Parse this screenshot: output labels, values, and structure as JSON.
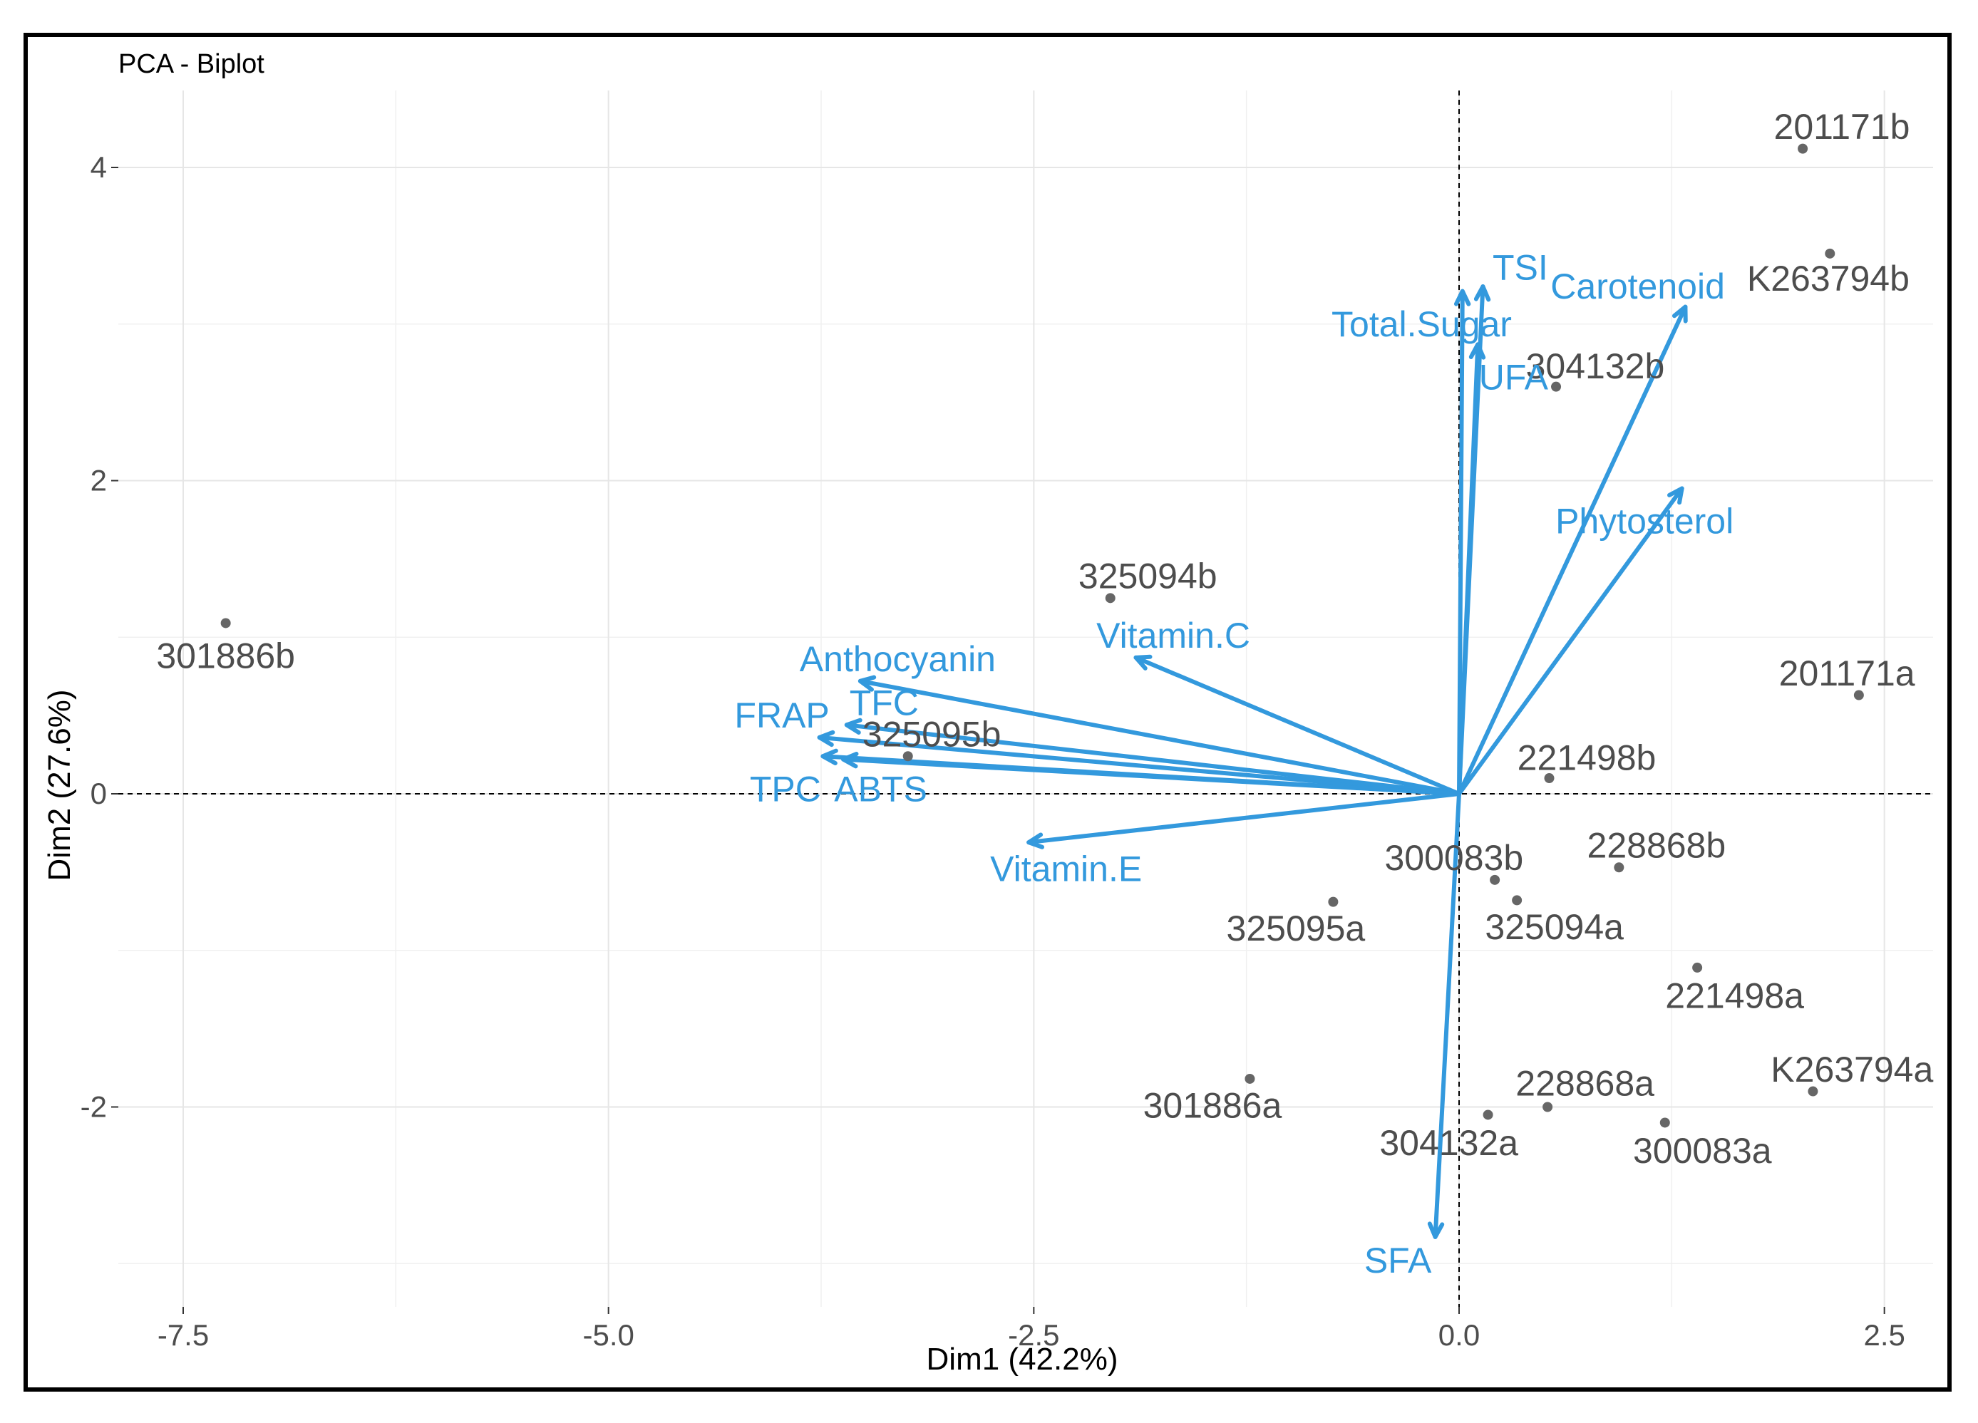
{
  "chart_data": {
    "type": "scatter",
    "title": "PCA - Biplot",
    "xlabel": "Dim1 (42.2%)",
    "ylabel": "Dim2 (27.6%)",
    "xlim": [
      -7.6,
      2.8
    ],
    "ylim": [
      -3.0,
      4.45
    ],
    "x_ticks": [
      {
        "value": -7.5,
        "label": "-7.5"
      },
      {
        "value": -5.0,
        "label": "-5.0"
      },
      {
        "value": -2.5,
        "label": "-2.5"
      },
      {
        "value": 0.0,
        "label": "0.0"
      },
      {
        "value": 2.5,
        "label": "2.5"
      }
    ],
    "y_ticks": [
      {
        "value": -2,
        "label": "-2"
      },
      {
        "value": 0,
        "label": "0"
      },
      {
        "value": 2,
        "label": "2"
      },
      {
        "value": 4,
        "label": "4"
      }
    ],
    "grid": true,
    "point_color": "#666666",
    "arrow_color": "#3399dd",
    "individuals": [
      {
        "label": "201171b",
        "x": 2.02,
        "y": 4.12,
        "lx": 2.25,
        "ly": 4.26
      },
      {
        "label": "K263794b",
        "x": 2.18,
        "y": 3.45,
        "lx": 2.17,
        "ly": 3.29
      },
      {
        "label": "304132b",
        "x": 0.57,
        "y": 2.6,
        "lx": 0.8,
        "ly": 2.73
      },
      {
        "label": "325094b",
        "x": -2.05,
        "y": 1.25,
        "lx": -1.83,
        "ly": 1.39
      },
      {
        "label": "301886b",
        "x": -7.25,
        "y": 1.09,
        "lx": -7.25,
        "ly": 0.88
      },
      {
        "label": "201171a",
        "x": 2.35,
        "y": 0.63,
        "lx": 2.28,
        "ly": 0.77
      },
      {
        "label": "325095b",
        "x": -3.24,
        "y": 0.24,
        "lx": -3.1,
        "ly": 0.38
      },
      {
        "label": "221498b",
        "x": 0.53,
        "y": 0.1,
        "lx": 0.75,
        "ly": 0.23
      },
      {
        "label": "300083b",
        "x": 0.21,
        "y": -0.55,
        "lx": -0.03,
        "ly": -0.41
      },
      {
        "label": "228868b",
        "x": 0.94,
        "y": -0.47,
        "lx": 1.16,
        "ly": -0.33
      },
      {
        "label": "325095a",
        "x": -0.74,
        "y": -0.69,
        "lx": -0.96,
        "ly": -0.86
      },
      {
        "label": "325094a",
        "x": 0.34,
        "y": -0.68,
        "lx": 0.56,
        "ly": -0.85
      },
      {
        "label": "221498a",
        "x": 1.4,
        "y": -1.11,
        "lx": 1.62,
        "ly": -1.29
      },
      {
        "label": "301886a",
        "x": -1.23,
        "y": -1.82,
        "lx": -1.45,
        "ly": -1.99
      },
      {
        "label": "228868a",
        "x": 0.52,
        "y": -2.0,
        "lx": 0.74,
        "ly": -1.85
      },
      {
        "label": "304132a",
        "x": 0.17,
        "y": -2.05,
        "lx": -0.06,
        "ly": -2.23
      },
      {
        "label": "300083a",
        "x": 1.21,
        "y": -2.1,
        "lx": 1.43,
        "ly": -2.28
      },
      {
        "label": "K263794a",
        "x": 2.08,
        "y": -1.9,
        "lx": 2.31,
        "ly": -1.76
      }
    ],
    "variables": [
      {
        "label": "TSI",
        "x": 0.14,
        "y": 3.24,
        "lx": 0.36,
        "ly": 3.36
      },
      {
        "label": "Total.Sugar",
        "x": 0.02,
        "y": 3.21,
        "lx": -0.22,
        "ly": 3.0
      },
      {
        "label": "UFA",
        "x": 0.11,
        "y": 2.87,
        "lx": 0.32,
        "ly": 2.66
      },
      {
        "label": "Carotenoid",
        "x": 1.33,
        "y": 3.11,
        "lx": 1.05,
        "ly": 3.24
      },
      {
        "label": "Phytosterol",
        "x": 1.31,
        "y": 1.95,
        "lx": 1.09,
        "ly": 1.74
      },
      {
        "label": "Vitamin.C",
        "x": -1.9,
        "y": 0.87,
        "lx": -1.68,
        "ly": 1.01
      },
      {
        "label": "Anthocyanin",
        "x": -3.52,
        "y": 0.72,
        "lx": -3.3,
        "ly": 0.86
      },
      {
        "label": "FRAP",
        "x": -3.76,
        "y": 0.36,
        "lx": -3.98,
        "ly": 0.5
      },
      {
        "label": "TFC",
        "x": -3.6,
        "y": 0.44,
        "lx": -3.38,
        "ly": 0.58
      },
      {
        "label": "TPC",
        "x": -3.74,
        "y": 0.24,
        "lx": -3.96,
        "ly": 0.03
      },
      {
        "label": "ABTS",
        "x": -3.62,
        "y": 0.22,
        "lx": -3.4,
        "ly": 0.03
      },
      {
        "label": "Vitamin.E",
        "x": -2.53,
        "y": -0.31,
        "lx": -2.31,
        "ly": -0.48
      },
      {
        "label": "SFA",
        "x": -0.14,
        "y": -2.83,
        "lx": -0.36,
        "ly": -2.98
      }
    ]
  }
}
